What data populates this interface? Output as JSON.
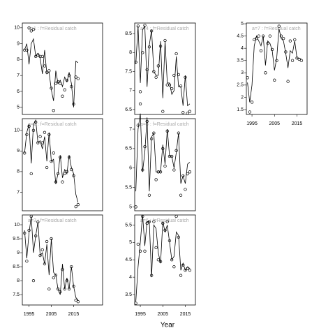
{
  "xlabel": "Year",
  "chart_data": [
    {
      "type": "line",
      "title": "a=1 : f=Residual catch",
      "x": [
        1993,
        1994,
        1995,
        1996,
        1997,
        1998,
        1999,
        2000,
        2001,
        2002,
        2003,
        2004,
        2005,
        2006,
        2007,
        2008,
        2009,
        2010,
        2011,
        2012,
        2013,
        2014,
        2015,
        2016,
        2017
      ],
      "series": [
        {
          "name": "observed",
          "color": "#000000",
          "values": [
            8.6,
            8.6,
            10.0,
            9.8,
            9.9,
            8.2,
            8.3,
            8.2,
            8.2,
            7.6,
            7.2,
            7.3,
            6.2,
            4.8,
            6.5,
            6.6,
            6.5,
            5.7,
            6.1,
            6.7,
            7.0,
            6.3,
            5.2,
            6.9,
            6.8
          ]
        },
        {
          "name": "fitted",
          "color": "#000000",
          "values": [
            8.6,
            9.0,
            7.7,
            9.0,
            9.3,
            8.2,
            8.4,
            8.1,
            7.1,
            8.6,
            7.1,
            7.2,
            6.1,
            5.4,
            7.3,
            6.5,
            6.7,
            6.3,
            6.9,
            6.6,
            7.2,
            6.5,
            5.0,
            7.9,
            7.8
          ]
        }
      ],
      "xlim": [
        1992,
        2028
      ],
      "ylim": [
        4.55,
        10.3
      ],
      "yticks": [
        5,
        6,
        7,
        8,
        9,
        10
      ]
    },
    {
      "type": "line",
      "title": "a=2 : f=Residual catch",
      "x": [
        1993,
        1994,
        1995,
        1996,
        1997,
        1998,
        1999,
        2000,
        2001,
        2002,
        2003,
        2004,
        2005,
        2006,
        2007,
        2008,
        2009,
        2010,
        2011,
        2012,
        2013,
        2014,
        2015,
        2016,
        2017
      ],
      "series": [
        {
          "name": "observed",
          "color": "#000000",
          "values": [
            8.9,
            9.8,
            10.2,
            7.9,
            10.0,
            10.4,
            9.4,
            9.7,
            9.4,
            9.9,
            8.2,
            9.8,
            8.5,
            8.9,
            7.5,
            7.9,
            8.7,
            7.5,
            7.9,
            8.0,
            8.7,
            8.1,
            7.8,
            6.3,
            6.4
          ]
        },
        {
          "name": "fitted",
          "color": "#000000",
          "values": [
            8.9,
            9.9,
            10.3,
            8.4,
            10.3,
            10.5,
            9.4,
            9.5,
            9.1,
            9.7,
            8.5,
            9.9,
            8.5,
            8.6,
            7.4,
            7.9,
            8.8,
            7.7,
            8.1,
            7.9,
            8.8,
            8.2,
            7.9,
            6.9,
            6.5
          ]
        }
      ],
      "xlim": [
        1992,
        2028
      ],
      "ylim": [
        6.1,
        10.57
      ],
      "yticks": [
        7,
        8,
        9,
        10
      ]
    },
    {
      "type": "line",
      "title": "a=3 : f=Residual catch",
      "x": [
        1993,
        1994,
        1995,
        1996,
        1997,
        1998,
        1999,
        2000,
        2001,
        2002,
        2003,
        2004,
        2005,
        2006,
        2007,
        2008,
        2009,
        2010,
        2011,
        2012,
        2013,
        2014,
        2015,
        2016,
        2017
      ],
      "series": [
        {
          "name": "observed",
          "color": "#000000",
          "values": [
            9.7,
            8.7,
            9.8,
            10.3,
            8.0,
            9.6,
            10.1,
            8.9,
            9.1,
            8.6,
            9.4,
            7.7,
            9.5,
            8.1,
            8.2,
            7.7,
            7.6,
            8.4,
            7.7,
            8.0,
            7.7,
            8.5,
            7.8,
            7.3,
            7.25
          ]
        },
        {
          "name": "fitted",
          "color": "#000000",
          "values": [
            9.8,
            8.8,
            9.7,
            10.3,
            9.0,
            9.6,
            10.1,
            8.9,
            9.0,
            8.6,
            9.3,
            8.2,
            9.5,
            8.3,
            8.2,
            7.7,
            7.5,
            8.6,
            7.7,
            8.1,
            7.7,
            8.5,
            7.8,
            7.4,
            7.3
          ]
        }
      ],
      "xlim": [
        1992,
        2028
      ],
      "ylim": [
        7.13,
        10.35
      ],
      "yticks": [
        7.5,
        8.0,
        8.5,
        9.0,
        9.5,
        10.0
      ],
      "xticks": [
        1995,
        2005,
        2015
      ]
    },
    {
      "type": "line",
      "title": "a=4 : f=Residual catch",
      "x": [
        1993,
        1994,
        1995,
        1996,
        1997,
        1998,
        1999,
        2000,
        2001,
        2002,
        2003,
        2004,
        2005,
        2006,
        2007,
        2008,
        2009,
        2010,
        2011,
        2012,
        2013,
        2014,
        2015,
        2016,
        2017
      ],
      "series": [
        {
          "name": "observed",
          "color": "#000000",
          "values": [
            7.75,
            8.7,
            6.97,
            8.0,
            8.72,
            7.55,
            8.15,
            8.57,
            7.5,
            7.35,
            7.65,
            8.17,
            6.45,
            8.32,
            7.15,
            7.15,
            7.05,
            7.4,
            7.97,
            7.42,
            7.12,
            6.42,
            7.35,
            6.4,
            6.45
          ]
        },
        {
          "name": "fitted",
          "color": "#000000",
          "values": [
            7.7,
            8.7,
            7.2,
            8.6,
            8.7,
            7.1,
            8.2,
            8.6,
            7.5,
            7.4,
            7.4,
            8.3,
            6.8,
            8.3,
            7.2,
            7.2,
            6.9,
            7.0,
            7.9,
            7.1,
            7.1,
            6.6,
            7.4,
            6.6,
            6.65
          ]
        }
      ],
      "xlim": [
        1992.5,
        2019.5
      ],
      "ylim": [
        6.37,
        8.78
      ],
      "yticks": [
        6.5,
        7.0,
        7.5,
        8.0,
        8.5
      ]
    },
    {
      "type": "line",
      "title": "a=5 : f=Residual catch",
      "x": [
        1993,
        1994,
        1995,
        1996,
        1997,
        1998,
        1999,
        2000,
        2001,
        2002,
        2003,
        2004,
        2005,
        2006,
        2007,
        2008,
        2009,
        2010,
        2011,
        2012,
        2013,
        2014,
        2015,
        2016,
        2017
      ],
      "series": [
        {
          "name": "observed",
          "color": "#000000",
          "values": [
            5.0,
            7.1,
            7.65,
            5.95,
            6.55,
            7.2,
            5.3,
            6.75,
            6.9,
            5.7,
            5.9,
            5.9,
            6.5,
            6.05,
            6.95,
            6.3,
            6.3,
            5.95,
            6.45,
            6.9,
            5.3,
            5.8,
            5.45,
            5.85,
            5.9
          ]
        },
        {
          "name": "fitted",
          "color": "#000000",
          "values": [
            5.4,
            7.0,
            7.4,
            5.9,
            6.4,
            7.3,
            5.4,
            6.8,
            6.9,
            5.9,
            5.9,
            5.9,
            6.6,
            6.1,
            7.0,
            6.3,
            6.3,
            6.0,
            6.4,
            6.9,
            5.6,
            5.8,
            5.6,
            6.1,
            6.15
          ]
        }
      ],
      "xlim": [
        1992.5,
        2019.5
      ],
      "ylim": [
        4.9,
        7.27
      ],
      "yticks": [
        5.0,
        5.5,
        6.0,
        6.5,
        7.0
      ]
    },
    {
      "type": "line",
      "title": "a=6 : f=Residual catch",
      "x": [
        1993,
        1994,
        1995,
        1996,
        1997,
        1998,
        1999,
        2000,
        2001,
        2002,
        2003,
        2004,
        2005,
        2006,
        2007,
        2008,
        2009,
        2010,
        2011,
        2012,
        2013,
        2014,
        2015,
        2016,
        2017
      ],
      "series": [
        {
          "name": "observed",
          "color": "#000000",
          "values": [
            3.25,
            4.95,
            4.75,
            5.75,
            4.75,
            5.55,
            5.6,
            4.05,
            5.6,
            4.85,
            4.5,
            4.45,
            5.55,
            5.35,
            5.6,
            5.05,
            4.5,
            4.3,
            5.75,
            5.15,
            4.05,
            4.35,
            4.2,
            4.25,
            4.2
          ]
        },
        {
          "name": "fitted",
          "color": "#000000",
          "values": [
            3.3,
            4.3,
            5.0,
            5.8,
            4.9,
            5.6,
            5.6,
            4.0,
            5.5,
            5.4,
            4.7,
            4.4,
            5.6,
            5.3,
            5.5,
            5.0,
            4.5,
            4.6,
            5.3,
            5.2,
            4.2,
            4.4,
            4.2,
            4.3,
            4.25
          ]
        }
      ],
      "xlim": [
        1992.5,
        2019.5
      ],
      "ylim": [
        3.2,
        5.79
      ],
      "yticks": [
        3.5,
        4.0,
        4.5,
        5.0,
        5.5
      ],
      "xticks": [
        1995,
        2005,
        2015
      ]
    },
    {
      "type": "line",
      "title": "a=7 : f=Residual catch",
      "x": [
        1993,
        1994,
        1995,
        1996,
        1997,
        1998,
        1999,
        2000,
        2001,
        2002,
        2003,
        2004,
        2005,
        2006,
        2007,
        2008,
        2009,
        2010,
        2011,
        2012,
        2013,
        2014,
        2015,
        2016,
        2017
      ],
      "series": [
        {
          "name": "observed",
          "color": "#000000",
          "values": [
            2.8,
            1.4,
            1.8,
            4.35,
            4.4,
            4.5,
            3.9,
            4.5,
            3.0,
            4.2,
            4.5,
            3.95,
            2.7,
            3.5,
            4.9,
            4.5,
            4.4,
            3.85,
            2.65,
            4.3,
            3.5,
            4.35,
            3.6,
            3.55,
            3.5
          ]
        },
        {
          "name": "fitted",
          "color": "#000000",
          "values": [
            2.6,
            1.8,
            2.5,
            4.1,
            4.5,
            4.3,
            4.1,
            4.5,
            3.3,
            4.3,
            4.2,
            3.9,
            3.1,
            3.6,
            4.8,
            4.4,
            4.3,
            3.8,
            3.2,
            3.9,
            3.8,
            4.3,
            3.6,
            3.6,
            3.55
          ]
        }
      ],
      "xlim": [
        1992.5,
        2019.5
      ],
      "ylim": [
        1.3,
        5.03
      ],
      "yticks": [
        1.5,
        2.0,
        2.5,
        3.0,
        3.5,
        4.0,
        4.5,
        5.0
      ],
      "xticks": [
        1995,
        2005,
        2015
      ]
    }
  ]
}
